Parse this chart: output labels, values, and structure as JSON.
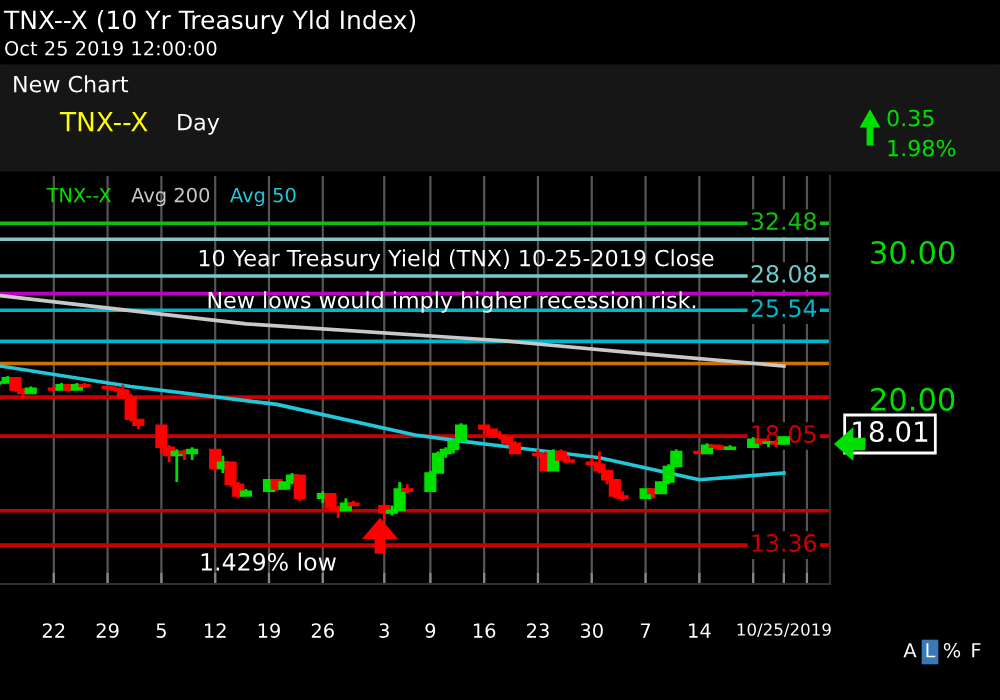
{
  "chart_data": {
    "type": "candlestick",
    "title": "TNX--X (10 Yr Treasury Yld Index)",
    "subtitle": "Oct 25 2019 12:00:00",
    "series": [
      {
        "name": "TNX--X",
        "type": "candlestick",
        "color": "#00e000",
        "x": [
          "2019-07-15",
          "2019-07-16",
          "2019-07-17",
          "2019-07-18",
          "2019-07-19",
          "2019-07-22",
          "2019-07-23",
          "2019-07-24",
          "2019-07-25",
          "2019-07-26",
          "2019-07-29",
          "2019-07-30",
          "2019-07-31",
          "2019-08-01",
          "2019-08-02",
          "2019-08-05",
          "2019-08-06",
          "2019-08-07",
          "2019-08-08",
          "2019-08-09",
          "2019-08-12",
          "2019-08-13",
          "2019-08-14",
          "2019-08-15",
          "2019-08-16",
          "2019-08-19",
          "2019-08-20",
          "2019-08-21",
          "2019-08-22",
          "2019-08-23",
          "2019-08-26",
          "2019-08-27",
          "2019-08-28",
          "2019-08-29",
          "2019-08-30",
          "2019-09-03",
          "2019-09-04",
          "2019-09-05",
          "2019-09-06",
          "2019-09-09",
          "2019-09-10",
          "2019-09-11",
          "2019-09-12",
          "2019-09-13",
          "2019-09-16",
          "2019-09-17",
          "2019-09-18",
          "2019-09-19",
          "2019-09-20",
          "2019-09-23",
          "2019-09-24",
          "2019-09-25",
          "2019-09-26",
          "2019-09-27",
          "2019-09-30",
          "2019-10-01",
          "2019-10-02",
          "2019-10-03",
          "2019-10-04",
          "2019-10-07",
          "2019-10-08",
          "2019-10-09",
          "2019-10-10",
          "2019-10-11",
          "2019-10-14",
          "2019-10-15",
          "2019-10-16",
          "2019-10-17",
          "2019-10-18",
          "2019-10-21",
          "2019-10-22",
          "2019-10-23",
          "2019-10-24",
          "2019-10-25"
        ],
        "ohlc": [
          [
            20.9,
            21.0,
            20.8,
            20.9
          ],
          [
            20.9,
            21.3,
            20.9,
            21.2
          ],
          [
            21.2,
            21.2,
            20.4,
            20.5
          ],
          [
            20.5,
            20.6,
            20.0,
            20.3
          ],
          [
            20.3,
            20.7,
            20.3,
            20.6
          ],
          [
            20.6,
            20.7,
            20.4,
            20.5
          ],
          [
            20.5,
            20.9,
            20.5,
            20.8
          ],
          [
            20.8,
            20.8,
            20.4,
            20.5
          ],
          [
            20.5,
            20.9,
            20.5,
            20.8
          ],
          [
            20.8,
            20.9,
            20.6,
            20.7
          ],
          [
            20.7,
            20.7,
            20.5,
            20.6
          ],
          [
            20.6,
            20.7,
            20.4,
            20.5
          ],
          [
            20.5,
            20.8,
            20.0,
            20.1
          ],
          [
            20.1,
            20.3,
            18.8,
            18.9
          ],
          [
            18.9,
            18.9,
            18.4,
            18.6
          ],
          [
            18.6,
            18.6,
            17.2,
            17.5
          ],
          [
            17.5,
            17.6,
            16.8,
            17.1
          ],
          [
            17.1,
            17.4,
            15.9,
            17.3
          ],
          [
            17.3,
            17.4,
            16.9,
            17.2
          ],
          [
            17.2,
            17.5,
            16.9,
            17.4
          ],
          [
            17.4,
            17.4,
            16.4,
            16.5
          ],
          [
            16.5,
            17.1,
            16.3,
            16.8
          ],
          [
            16.8,
            16.8,
            15.7,
            15.8
          ],
          [
            15.8,
            15.9,
            15.2,
            15.3
          ],
          [
            15.3,
            15.6,
            15.3,
            15.5
          ],
          [
            15.5,
            16.0,
            15.5,
            16.0
          ],
          [
            16.0,
            16.0,
            15.5,
            15.6
          ],
          [
            15.6,
            15.9,
            15.6,
            15.9
          ],
          [
            15.9,
            16.3,
            15.8,
            16.2
          ],
          [
            16.2,
            16.2,
            15.1,
            15.2
          ],
          [
            15.2,
            15.5,
            15.0,
            15.4
          ],
          [
            15.4,
            15.4,
            14.7,
            14.8
          ],
          [
            14.8,
            14.9,
            14.4,
            14.7
          ],
          [
            14.7,
            15.2,
            14.7,
            15.0
          ],
          [
            15.0,
            15.1,
            14.9,
            14.9
          ],
          [
            14.9,
            15.0,
            14.29,
            14.6
          ],
          [
            14.6,
            14.9,
            14.5,
            14.7
          ],
          [
            14.7,
            15.9,
            14.7,
            15.6
          ],
          [
            15.6,
            15.8,
            15.4,
            15.5
          ],
          [
            15.5,
            16.4,
            15.5,
            16.3
          ],
          [
            16.3,
            17.3,
            16.3,
            17.2
          ],
          [
            17.2,
            17.5,
            17.0,
            17.4
          ],
          [
            17.4,
            17.9,
            17.2,
            17.8
          ],
          [
            17.8,
            18.7,
            17.8,
            18.6
          ],
          [
            18.6,
            18.6,
            18.2,
            18.4
          ],
          [
            18.4,
            18.4,
            18.0,
            18.1
          ],
          [
            18.1,
            18.3,
            17.9,
            18.0
          ],
          [
            18.0,
            18.0,
            17.6,
            17.7
          ],
          [
            17.7,
            17.8,
            17.2,
            17.2
          ],
          [
            17.2,
            17.4,
            17.0,
            17.1
          ],
          [
            17.1,
            17.3,
            16.4,
            16.4
          ],
          [
            16.4,
            17.4,
            16.4,
            17.3
          ],
          [
            17.3,
            17.4,
            16.9,
            16.9
          ],
          [
            16.9,
            17.1,
            16.8,
            16.8
          ],
          [
            16.8,
            17.0,
            16.6,
            16.7
          ],
          [
            16.7,
            17.3,
            16.3,
            16.4
          ],
          [
            16.4,
            16.4,
            15.8,
            16.0
          ],
          [
            16.0,
            16.0,
            15.2,
            15.3
          ],
          [
            15.3,
            15.5,
            15.1,
            15.2
          ],
          [
            15.2,
            15.6,
            15.2,
            15.6
          ],
          [
            15.6,
            15.6,
            15.2,
            15.4
          ],
          [
            15.4,
            15.9,
            15.4,
            15.9
          ],
          [
            15.9,
            16.7,
            15.8,
            16.6
          ],
          [
            16.6,
            17.4,
            16.6,
            17.3
          ],
          [
            17.3,
            17.3,
            17.2,
            17.2
          ],
          [
            17.2,
            17.7,
            17.2,
            17.6
          ],
          [
            17.6,
            17.6,
            17.4,
            17.5
          ],
          [
            17.5,
            17.6,
            17.4,
            17.4
          ],
          [
            17.4,
            17.6,
            17.4,
            17.5
          ],
          [
            17.5,
            18.0,
            17.5,
            17.9
          ],
          [
            17.9,
            17.9,
            17.6,
            17.7
          ],
          [
            17.7,
            17.8,
            17.5,
            17.7
          ],
          [
            17.7,
            17.8,
            17.5,
            17.66
          ],
          [
            17.66,
            18.03,
            17.6,
            18.01
          ]
        ],
        "colors": [
          "#00e000",
          "#00e000",
          "#ff0000",
          "#ff0000",
          "#00e000",
          "#ff0000",
          "#00e000",
          "#ff0000",
          "#00e000",
          "#ff0000",
          "#ff0000",
          "#ff0000",
          "#ff0000",
          "#ff0000",
          "#ff0000",
          "#ff0000",
          "#ff0000",
          "#00e000",
          "#ff0000",
          "#00e000",
          "#ff0000",
          "#00e000",
          "#ff0000",
          "#ff0000",
          "#00e000",
          "#00e000",
          "#ff0000",
          "#00e000",
          "#00e000",
          "#ff0000",
          "#00e000",
          "#ff0000",
          "#ff0000",
          "#00e000",
          "#ff0000",
          "#ff0000",
          "#00e000",
          "#00e000",
          "#ff0000",
          "#00e000",
          "#00e000",
          "#00e000",
          "#00e000",
          "#00e000",
          "#ff0000",
          "#ff0000",
          "#ff0000",
          "#ff0000",
          "#ff0000",
          "#ff0000",
          "#ff0000",
          "#00e000",
          "#ff0000",
          "#ff0000",
          "#ff0000",
          "#ff0000",
          "#ff0000",
          "#ff0000",
          "#ff0000",
          "#00e000",
          "#ff0000",
          "#00e000",
          "#00e000",
          "#00e000",
          "#ff0000",
          "#00e000",
          "#ff0000",
          "#ff0000",
          "#00e000",
          "#00e000",
          "#ff0000",
          "#00e000",
          "#ff0000",
          "#00e000"
        ]
      },
      {
        "name": "Avg 200",
        "type": "line",
        "color": "#c8c8c8",
        "x": [
          "2019-07-15",
          "2019-08-16",
          "2019-09-18",
          "2019-10-08",
          "2019-10-25"
        ],
        "values": [
          26.6,
          24.6,
          23.5,
          22.6,
          21.9
        ]
      },
      {
        "name": "Avg 50",
        "type": "line",
        "color": "#20c8d8",
        "x": [
          "2019-07-15",
          "2019-08-01",
          "2019-08-20",
          "2019-09-07",
          "2019-09-13",
          "2019-10-01",
          "2019-10-14",
          "2019-10-25"
        ],
        "values": [
          21.9,
          20.7,
          19.7,
          18.1,
          17.8,
          17.0,
          16.0,
          16.3
        ]
      }
    ],
    "xlim": [
      "2019-07-15",
      "2019-10-31"
    ],
    "xticks": [
      {
        "value": "2019-07-22",
        "label": "22"
      },
      {
        "value": "2019-07-29",
        "label": "29"
      },
      {
        "value": "2019-08-05",
        "label": "5"
      },
      {
        "value": "2019-08-12",
        "label": "12"
      },
      {
        "value": "2019-08-19",
        "label": "19"
      },
      {
        "value": "2019-08-26",
        "label": "26"
      },
      {
        "value": "2019-09-03",
        "label": "3"
      },
      {
        "value": "2019-09-09",
        "label": "9"
      },
      {
        "value": "2019-09-16",
        "label": "16"
      },
      {
        "value": "2019-09-23",
        "label": "23"
      },
      {
        "value": "2019-09-30",
        "label": "30"
      },
      {
        "value": "2019-10-07",
        "label": "7"
      },
      {
        "value": "2019-10-14",
        "label": "14"
      },
      {
        "value": "2019-10-21",
        "label": null
      },
      {
        "value": "2019-10-25",
        "label": "10/25/2019"
      },
      {
        "value": "2019-10-28",
        "label": null
      }
    ],
    "ylim": [
      12,
      37
    ],
    "log": true,
    "yticks": [
      {
        "value": 20,
        "label": "20.00"
      },
      {
        "value": 30,
        "label": "30.00"
      }
    ],
    "grid": "x",
    "legend": "top left",
    "ref_lines": [
      {
        "axis": "y",
        "value": 32.48,
        "label": "32.48",
        "color": "#10c010"
      },
      {
        "axis": "y",
        "value": 31.07,
        "color": "#80c8c8"
      },
      {
        "axis": "y",
        "value": 28.08,
        "label": "28.08",
        "color": "#70cccc"
      },
      {
        "axis": "y",
        "value": 26.74,
        "color": "#c000c0"
      },
      {
        "axis": "y",
        "value": 25.54,
        "label": "25.54",
        "color": "#00b8c8"
      },
      {
        "axis": "y",
        "value": 23.44,
        "color": "#00b8c8"
      },
      {
        "axis": "y",
        "value": 22.05,
        "color": "#d07000"
      },
      {
        "axis": "y",
        "value": 20.1,
        "color": "#cc0000"
      },
      {
        "axis": "y",
        "value": 18.05,
        "label": "18.05",
        "color": "#cc0000"
      },
      {
        "axis": "y",
        "value": 14.69,
        "color": "#cc0000"
      },
      {
        "axis": "y",
        "value": 13.36,
        "label": "13.36",
        "color": "#cc0000"
      }
    ],
    "annotations": [
      "10 Year Treasury Yield (TNX) 10-25-2019 Close",
      "New lows would imply higher recession risk.",
      "1.429% low",
      "18.01",
      "New Chart",
      "TNX--X",
      "Day",
      "0.35",
      "1.98%",
      "A",
      "L",
      "%",
      "F"
    ]
  }
}
